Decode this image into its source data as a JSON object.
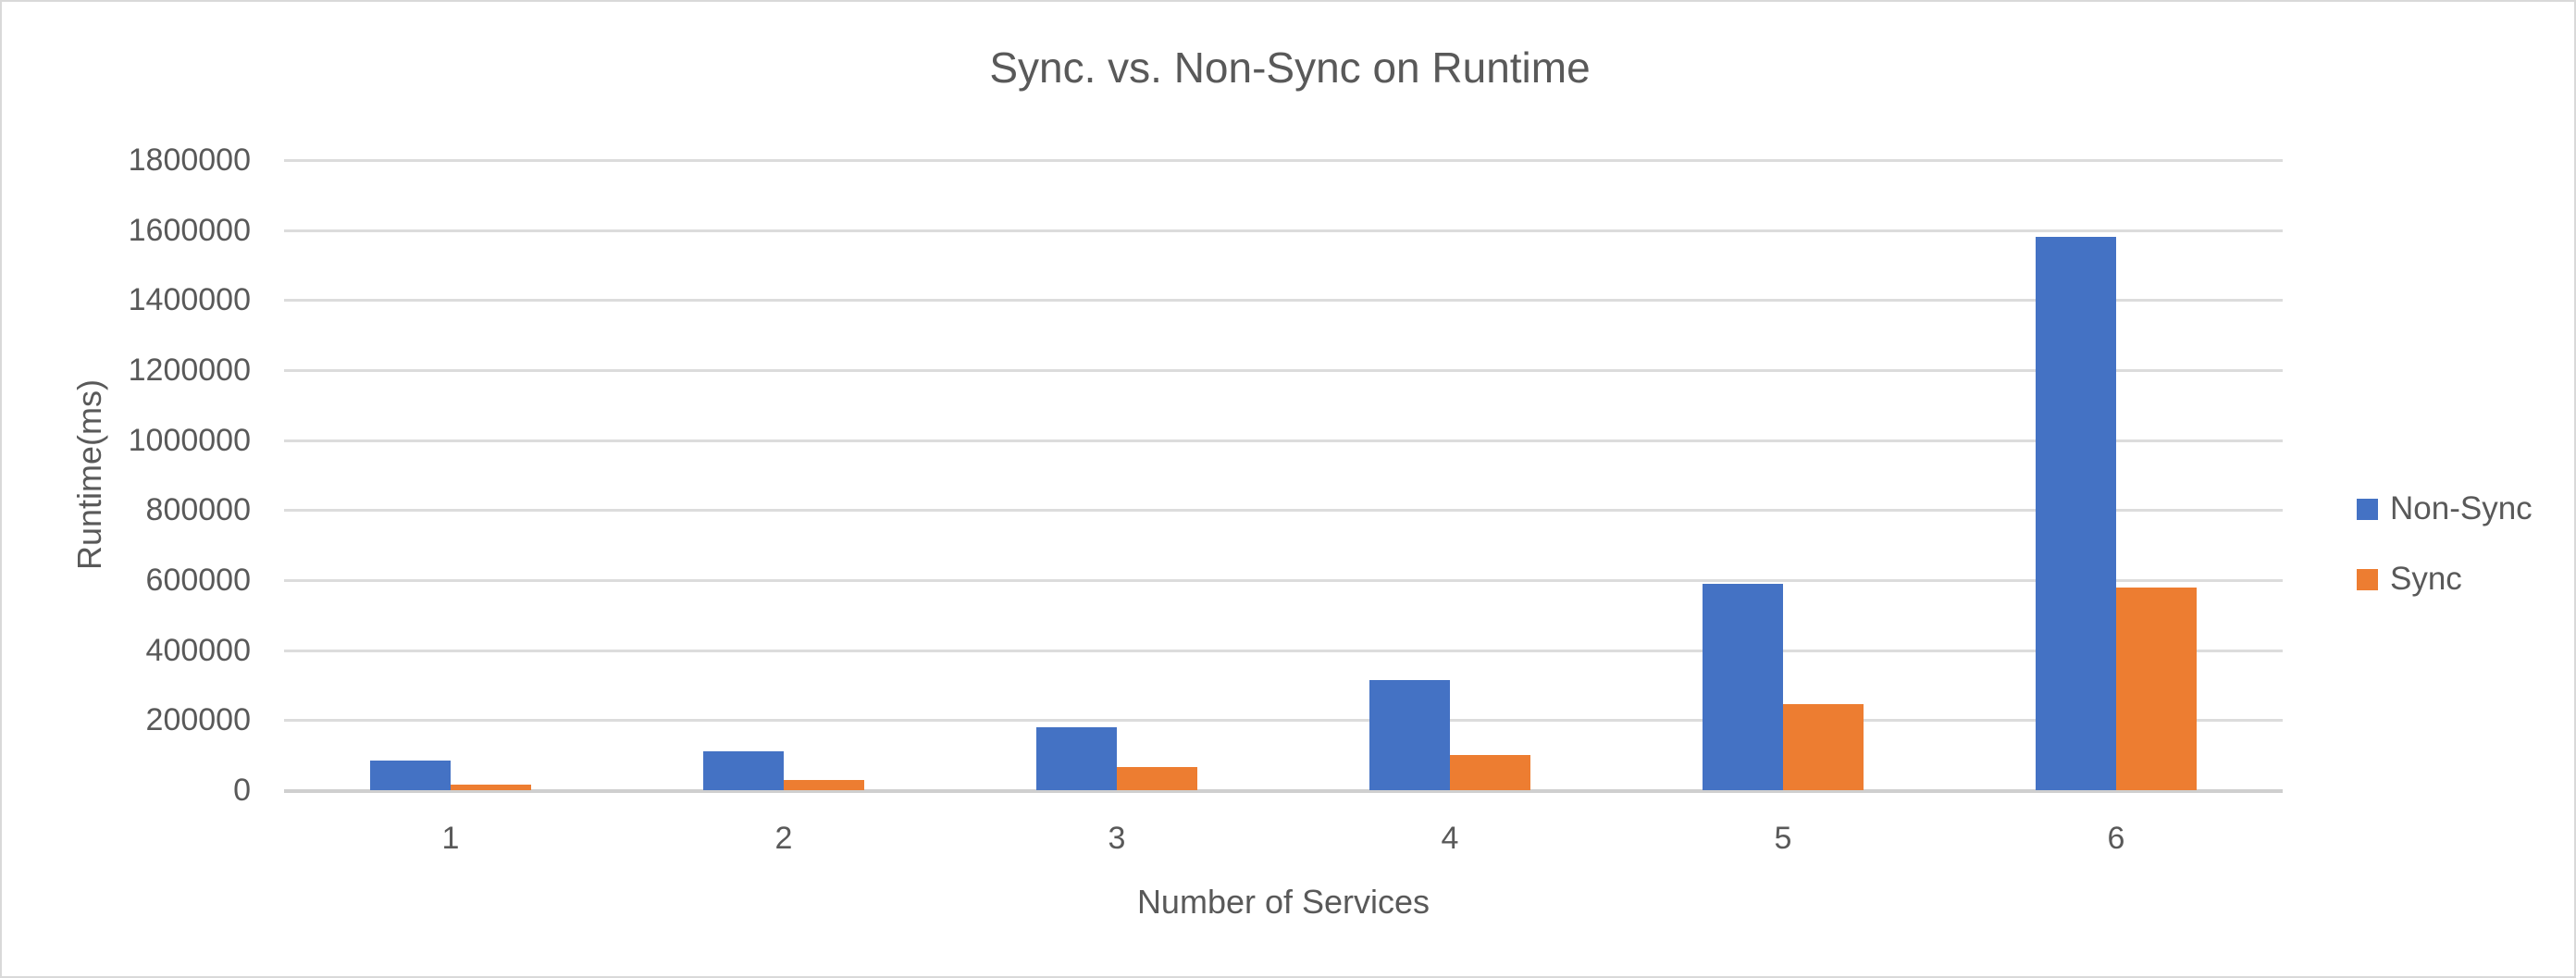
{
  "chart_data": {
    "type": "bar",
    "title": "Sync. vs. Non-Sync on Runtime",
    "xlabel": "Number of Services",
    "ylabel": "Runtime(ms)",
    "categories": [
      "1",
      "2",
      "3",
      "4",
      "5",
      "6"
    ],
    "series": [
      {
        "name": "Non-Sync",
        "color": "#4472C4",
        "values": [
          85000,
          110000,
          180000,
          315000,
          590000,
          1580000
        ]
      },
      {
        "name": "Sync",
        "color": "#ED7D31",
        "values": [
          15000,
          29000,
          65000,
          100000,
          245000,
          580000
        ]
      }
    ],
    "ylim": [
      0,
      1800000
    ],
    "ytick_step": 200000,
    "yticks": [
      "1800000",
      "1600000",
      "1400000",
      "1200000",
      "1000000",
      "800000",
      "600000",
      "400000",
      "200000",
      "0"
    ],
    "grid": true,
    "legend_position": "right",
    "colors": {
      "text": "#595959",
      "gridline": "#DCDCDC",
      "axis_line": "#CFCFCF",
      "background": "#FFFFFF",
      "border": "#D9D9D9"
    }
  }
}
